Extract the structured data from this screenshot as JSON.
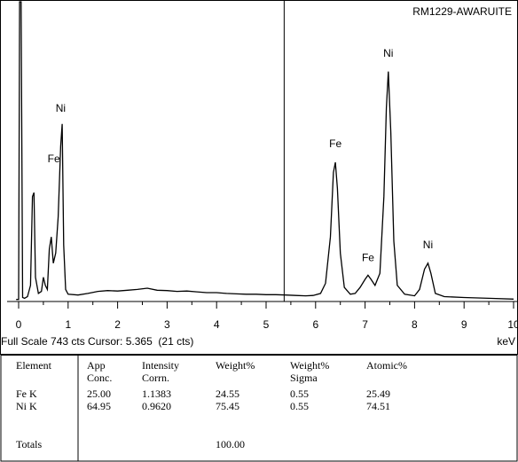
{
  "chart_data": {
    "type": "line",
    "title": "RM1229-AWARUITE",
    "xlabel": "keV",
    "xlim": [
      0,
      10
    ],
    "ticks": [
      "0",
      "1",
      "2",
      "3",
      "4",
      "5",
      "6",
      "7",
      "8",
      "9",
      "10"
    ],
    "cursor_kev": 5.365,
    "status": "Full Scale 743 cts Cursor: 5.365  (21 cts)",
    "full_scale_cts": 743,
    "ylim": [
      0,
      743
    ],
    "spectrum": [
      [
        -0.05,
        5
      ],
      [
        0.0,
        5
      ],
      [
        0.02,
        743
      ],
      [
        0.05,
        743
      ],
      [
        0.08,
        10
      ],
      [
        0.12,
        8
      ],
      [
        0.18,
        12
      ],
      [
        0.24,
        40
      ],
      [
        0.28,
        260
      ],
      [
        0.31,
        270
      ],
      [
        0.34,
        60
      ],
      [
        0.4,
        20
      ],
      [
        0.46,
        25
      ],
      [
        0.5,
        60
      ],
      [
        0.54,
        40
      ],
      [
        0.58,
        30
      ],
      [
        0.62,
        130
      ],
      [
        0.66,
        160
      ],
      [
        0.7,
        95
      ],
      [
        0.75,
        120
      ],
      [
        0.8,
        210
      ],
      [
        0.85,
        385
      ],
      [
        0.88,
        440
      ],
      [
        0.91,
        140
      ],
      [
        0.95,
        30
      ],
      [
        1.0,
        18
      ],
      [
        1.2,
        16
      ],
      [
        1.4,
        20
      ],
      [
        1.6,
        25
      ],
      [
        1.8,
        27
      ],
      [
        2.0,
        26
      ],
      [
        2.2,
        28
      ],
      [
        2.4,
        30
      ],
      [
        2.6,
        33
      ],
      [
        2.8,
        28
      ],
      [
        3.0,
        27
      ],
      [
        3.2,
        25
      ],
      [
        3.4,
        26
      ],
      [
        3.6,
        24
      ],
      [
        3.8,
        22
      ],
      [
        4.0,
        22
      ],
      [
        4.2,
        20
      ],
      [
        4.4,
        19
      ],
      [
        4.6,
        18
      ],
      [
        4.8,
        18
      ],
      [
        5.0,
        17
      ],
      [
        5.2,
        17
      ],
      [
        5.4,
        16
      ],
      [
        5.6,
        15
      ],
      [
        5.8,
        14
      ],
      [
        5.95,
        15
      ],
      [
        6.1,
        20
      ],
      [
        6.2,
        45
      ],
      [
        6.3,
        160
      ],
      [
        6.36,
        320
      ],
      [
        6.4,
        345
      ],
      [
        6.44,
        280
      ],
      [
        6.5,
        120
      ],
      [
        6.58,
        35
      ],
      [
        6.7,
        18
      ],
      [
        6.8,
        20
      ],
      [
        6.9,
        35
      ],
      [
        7.0,
        55
      ],
      [
        7.06,
        65
      ],
      [
        7.12,
        55
      ],
      [
        7.2,
        40
      ],
      [
        7.3,
        70
      ],
      [
        7.38,
        260
      ],
      [
        7.43,
        480
      ],
      [
        7.47,
        570
      ],
      [
        7.52,
        420
      ],
      [
        7.58,
        150
      ],
      [
        7.65,
        40
      ],
      [
        7.8,
        18
      ],
      [
        8.0,
        14
      ],
      [
        8.1,
        30
      ],
      [
        8.2,
        80
      ],
      [
        8.27,
        95
      ],
      [
        8.33,
        70
      ],
      [
        8.42,
        20
      ],
      [
        8.6,
        12
      ],
      [
        9.0,
        10
      ],
      [
        9.5,
        8
      ],
      [
        10.0,
        6
      ]
    ],
    "peak_labels": [
      {
        "text": "Ni",
        "kev": 0.85,
        "cts": 470
      },
      {
        "text": "Fe",
        "kev": 0.71,
        "cts": 345
      },
      {
        "text": "Fe",
        "kev": 6.4,
        "cts": 382
      },
      {
        "text": "Ni",
        "kev": 7.47,
        "cts": 607
      },
      {
        "text": "Fe",
        "kev": 7.06,
        "cts": 100
      },
      {
        "text": "Ni",
        "kev": 8.27,
        "cts": 132
      }
    ]
  },
  "results_table": {
    "headers": [
      {
        "line1": "Element",
        "line2": ""
      },
      {
        "line1": "App",
        "line2": "Conc."
      },
      {
        "line1": "Intensity",
        "line2": "Corrn."
      },
      {
        "line1": "Weight%",
        "line2": ""
      },
      {
        "line1": "Weight%",
        "line2": "Sigma"
      },
      {
        "line1": "Atomic%",
        "line2": ""
      }
    ],
    "rows": [
      [
        "Fe K",
        "25.00",
        "1.1383",
        "24.55",
        "0.55",
        "25.49"
      ],
      [
        "Ni K",
        "64.95",
        "0.9620",
        "75.45",
        "0.55",
        "74.51"
      ]
    ],
    "totals": {
      "label": "Totals",
      "weight": "100.00"
    }
  }
}
